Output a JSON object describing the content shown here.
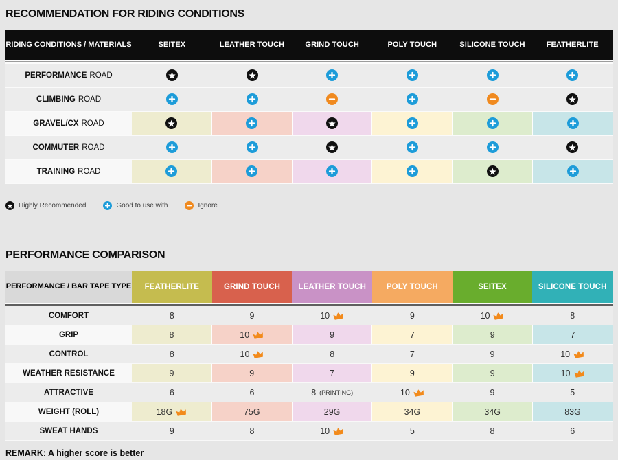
{
  "colors": {
    "page_bg": "#e6e6e6",
    "row_gray": "#ececec",
    "row_light_label": "#f8f8f8",
    "t1_header_bg": "#0d0d0d",
    "t2_corner_bg": "#d9d9d9",
    "icon_star": "#111111",
    "icon_plus": "#1d9cd9",
    "icon_minus": "#f08a1f",
    "crown": "#f28a1b",
    "column_light_colors": [
      "#eeeccf",
      "#f6d2c8",
      "#f0d8ec",
      "#fdf3d3",
      "#ddeccd",
      "#c7e5e8"
    ]
  },
  "chart_data": [
    {
      "type": "table",
      "title": "RECOMMENDATION FOR RIDING CONDITIONS",
      "corner_header": "RIDING CONDITIONS / MATERIALS",
      "columns": [
        "SEITEX",
        "LEATHER TOUCH",
        "GRIND TOUCH",
        "POLY TOUCH",
        "SILICONE TOUCH",
        "FEATHERLITE"
      ],
      "icon_meanings": {
        "star": "Highly Recommended",
        "plus": "Good to use with",
        "minus": "Ignore"
      },
      "rows": [
        {
          "condition": "PERFORMANCE",
          "suffix": "ROAD",
          "colored": false,
          "icons": [
            "star",
            "star",
            "plus",
            "plus",
            "plus",
            "plus"
          ]
        },
        {
          "condition": "CLIMBING",
          "suffix": "ROAD",
          "colored": false,
          "icons": [
            "plus",
            "plus",
            "minus",
            "plus",
            "minus",
            "star"
          ]
        },
        {
          "condition": "GRAVEL/CX",
          "suffix": "ROAD",
          "colored": true,
          "icons": [
            "star",
            "plus",
            "star",
            "plus",
            "plus",
            "plus"
          ]
        },
        {
          "condition": "COMMUTER",
          "suffix": "ROAD",
          "colored": false,
          "icons": [
            "plus",
            "plus",
            "star",
            "plus",
            "plus",
            "star"
          ]
        },
        {
          "condition": "TRAINING",
          "suffix": "ROAD",
          "colored": true,
          "icons": [
            "plus",
            "plus",
            "plus",
            "plus",
            "star",
            "plus"
          ]
        }
      ],
      "legend": [
        {
          "icon": "star",
          "label": "Highly Recommended"
        },
        {
          "icon": "plus",
          "label": "Good to use with"
        },
        {
          "icon": "minus",
          "label": "Ignore"
        }
      ]
    },
    {
      "type": "table",
      "title": "PERFORMANCE COMPARISON",
      "corner_header": "PERFORMANCE / BAR TAPE TYPE",
      "columns": [
        {
          "label": "FEATHERLITE",
          "color": "#c5bc4f"
        },
        {
          "label": "GRIND TOUCH",
          "color": "#d8614d"
        },
        {
          "label": "LEATHER TOUCH",
          "color": "#c992c6"
        },
        {
          "label": "POLY TOUCH",
          "color": "#f5aa61"
        },
        {
          "label": "SEITEX",
          "color": "#69ad2d"
        },
        {
          "label": "SILICONE TOUCH",
          "color": "#31b1b7"
        }
      ],
      "rows": [
        {
          "label": "COMFORT",
          "colored": false,
          "cells": [
            {
              "value": "8"
            },
            {
              "value": "9"
            },
            {
              "value": "10",
              "crown": true
            },
            {
              "value": "9"
            },
            {
              "value": "10",
              "crown": true
            },
            {
              "value": "8"
            }
          ]
        },
        {
          "label": "GRIP",
          "colored": true,
          "cells": [
            {
              "value": "8"
            },
            {
              "value": "10",
              "crown": true
            },
            {
              "value": "9"
            },
            {
              "value": "7"
            },
            {
              "value": "9"
            },
            {
              "value": "7"
            }
          ]
        },
        {
          "label": "CONTROL",
          "colored": false,
          "cells": [
            {
              "value": "8"
            },
            {
              "value": "10",
              "crown": true
            },
            {
              "value": "8"
            },
            {
              "value": "7"
            },
            {
              "value": "9"
            },
            {
              "value": "10",
              "crown": true
            }
          ]
        },
        {
          "label": "WEATHER RESISTANCE",
          "colored": true,
          "cells": [
            {
              "value": "9"
            },
            {
              "value": "9"
            },
            {
              "value": "7"
            },
            {
              "value": "9"
            },
            {
              "value": "9"
            },
            {
              "value": "10",
              "crown": true
            }
          ]
        },
        {
          "label": "ATTRACTIVE",
          "colored": false,
          "cells": [
            {
              "value": "6"
            },
            {
              "value": "6"
            },
            {
              "value": "8",
              "note": "(PRINTING)"
            },
            {
              "value": "10",
              "crown": true
            },
            {
              "value": "9"
            },
            {
              "value": "5"
            }
          ]
        },
        {
          "label": "WEIGHT (ROLL)",
          "colored": true,
          "cells": [
            {
              "value": "18G",
              "crown": true
            },
            {
              "value": "75G"
            },
            {
              "value": "29G"
            },
            {
              "value": "34G"
            },
            {
              "value": "34G"
            },
            {
              "value": "83G"
            }
          ]
        },
        {
          "label": "SWEAT HANDS",
          "colored": false,
          "cells": [
            {
              "value": "9"
            },
            {
              "value": "8"
            },
            {
              "value": "10",
              "crown": true
            },
            {
              "value": "5"
            },
            {
              "value": "8"
            },
            {
              "value": "6"
            }
          ]
        }
      ],
      "remark": "REMARK: A higher score is better"
    }
  ]
}
